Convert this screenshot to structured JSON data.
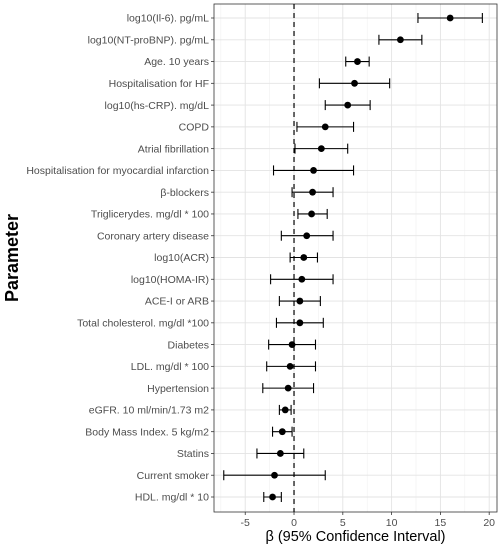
{
  "chart_data": {
    "type": "forest",
    "xlabel": "β (95% Confidence Interval)",
    "ylabel": "Parameter",
    "xlim": [
      -8.2,
      20.8
    ],
    "x_ticks": [
      -5,
      0,
      5,
      10,
      15,
      20
    ],
    "x_tick_labels": [
      "-5",
      "0",
      "5",
      "10",
      "15",
      "20"
    ],
    "reference_line": 0,
    "grid": true,
    "rows": [
      {
        "label": "log10(Il-6). pg/mL",
        "estimate": 16.0,
        "lower": 12.7,
        "upper": 19.3
      },
      {
        "label": "log10(NT-proBNP). pg/mL",
        "estimate": 10.9,
        "lower": 8.7,
        "upper": 13.1
      },
      {
        "label": "Age. 10 years",
        "estimate": 6.5,
        "lower": 5.3,
        "upper": 7.7
      },
      {
        "label": "Hospitalisation for HF",
        "estimate": 6.2,
        "lower": 2.6,
        "upper": 9.8
      },
      {
        "label": "log10(hs-CRP). mg/dL",
        "estimate": 5.5,
        "lower": 3.2,
        "upper": 7.8
      },
      {
        "label": "COPD",
        "estimate": 3.2,
        "lower": 0.3,
        "upper": 6.1
      },
      {
        "label": "Atrial fibrillation",
        "estimate": 2.8,
        "lower": 0.1,
        "upper": 5.5
      },
      {
        "label": "Hospitalisation for myocardial infarction",
        "estimate": 2.0,
        "lower": -2.1,
        "upper": 6.1
      },
      {
        "label": "β-blockers",
        "estimate": 1.9,
        "lower": -0.2,
        "upper": 4.0
      },
      {
        "label": "Triglicerydes. mg/dl * 100",
        "estimate": 1.8,
        "lower": 0.4,
        "upper": 3.4
      },
      {
        "label": "Coronary artery disease",
        "estimate": 1.3,
        "lower": -1.3,
        "upper": 4.0
      },
      {
        "label": "log10(ACR)",
        "estimate": 1.0,
        "lower": -0.4,
        "upper": 2.4
      },
      {
        "label": "log10(HOMA-IR)",
        "estimate": 0.8,
        "lower": -2.4,
        "upper": 4.0
      },
      {
        "label": "ACE-I or ARB",
        "estimate": 0.6,
        "lower": -1.5,
        "upper": 2.7
      },
      {
        "label": "Total cholesterol. mg/dl *100",
        "estimate": 0.6,
        "lower": -1.8,
        "upper": 3.0
      },
      {
        "label": "Diabetes",
        "estimate": -0.2,
        "lower": -2.6,
        "upper": 2.2
      },
      {
        "label": "LDL. mg/dl * 100",
        "estimate": -0.4,
        "lower": -2.8,
        "upper": 2.2
      },
      {
        "label": "Hypertension",
        "estimate": -0.6,
        "lower": -3.2,
        "upper": 2.0
      },
      {
        "label": "eGFR. 10 ml/min/1.73 m2",
        "estimate": -0.9,
        "lower": -1.5,
        "upper": -0.3
      },
      {
        "label": "Body Mass Index. 5 kg/m2",
        "estimate": -1.2,
        "lower": -2.2,
        "upper": -0.2
      },
      {
        "label": "Statins",
        "estimate": -1.4,
        "lower": -3.8,
        "upper": 1.0
      },
      {
        "label": "Current smoker",
        "estimate": -2.0,
        "lower": -7.2,
        "upper": 3.2
      },
      {
        "label": "HDL. mg/dl * 10",
        "estimate": -2.2,
        "lower": -3.1,
        "upper": -1.3
      }
    ]
  }
}
